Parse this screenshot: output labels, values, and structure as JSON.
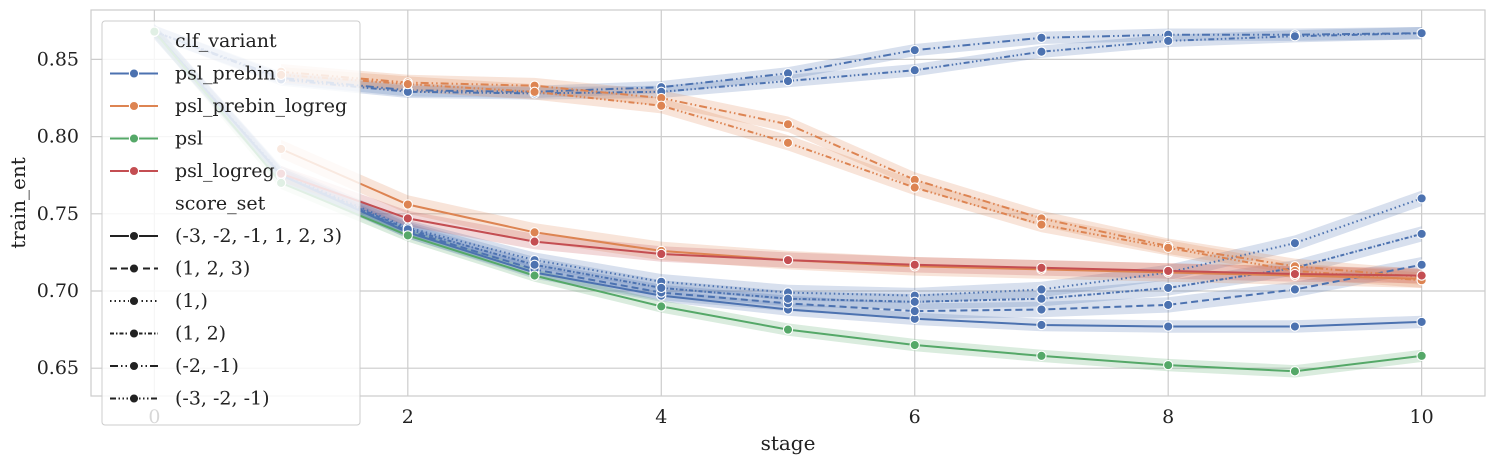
{
  "chart_data": {
    "type": "line",
    "title": "",
    "xlabel": "stage",
    "ylabel": "train_ent",
    "xlim": [
      -0.5,
      10.5
    ],
    "ylim": [
      0.632,
      0.882
    ],
    "xticks": [
      0,
      2,
      4,
      6,
      8,
      10
    ],
    "yticks": [
      0.65,
      0.7,
      0.75,
      0.8,
      0.85
    ],
    "ytick_labels": [
      "0.65",
      "0.70",
      "0.75",
      "0.80",
      "0.85"
    ],
    "grid": true,
    "legend_position": "top-left",
    "legend": {
      "hue_title": "clf_variant",
      "hue_items": [
        {
          "name": "psl_prebin",
          "color": "#4c72b0"
        },
        {
          "name": "psl_prebin_logreg",
          "color": "#dd8452"
        },
        {
          "name": "psl",
          "color": "#55a868"
        },
        {
          "name": "psl_logreg",
          "color": "#c44e52"
        }
      ],
      "style_title": "score_set",
      "style_items": [
        {
          "name": "(-3, -2, -1, 1, 2, 3)",
          "dash": "solid"
        },
        {
          "name": "(1, 2, 3)",
          "dash": "dashed"
        },
        {
          "name": "(1,)",
          "dash": "dotted"
        },
        {
          "name": "(1, 2)",
          "dash": "dashdot"
        },
        {
          "name": "(-2, -1)",
          "dash": "dashdotdot"
        },
        {
          "name": "(-3, -2, -1)",
          "dash": "dashdotdotdot"
        }
      ]
    },
    "series": [
      {
        "clf_variant": "psl_prebin",
        "score_set": "(-3, -2, -1, 1, 2, 3)",
        "color": "#4c72b0",
        "dash": "solid",
        "band": 0.004,
        "x": [
          0,
          1,
          2,
          3,
          4,
          5,
          6,
          7,
          8,
          9,
          10
        ],
        "y": [
          0.868,
          0.775,
          0.738,
          0.712,
          0.697,
          0.688,
          0.682,
          0.678,
          0.677,
          0.677,
          0.68
        ]
      },
      {
        "clf_variant": "psl_prebin",
        "score_set": "(1, 2, 3)",
        "color": "#4c72b0",
        "dash": "dashed",
        "band": 0.005,
        "x": [
          0,
          1,
          2,
          3,
          4,
          5,
          6,
          7,
          8,
          9,
          10
        ],
        "y": [
          0.868,
          0.775,
          0.739,
          0.714,
          0.699,
          0.692,
          0.687,
          0.688,
          0.691,
          0.701,
          0.717
        ]
      },
      {
        "clf_variant": "psl_prebin",
        "score_set": "(1,)",
        "color": "#4c72b0",
        "dash": "dotted",
        "band": 0.005,
        "x": [
          0,
          1,
          2,
          3,
          4,
          5,
          6,
          7,
          8,
          9,
          10
        ],
        "y": [
          0.868,
          0.776,
          0.741,
          0.72,
          0.706,
          0.699,
          0.697,
          0.701,
          0.712,
          0.731,
          0.76
        ]
      },
      {
        "clf_variant": "psl_prebin",
        "score_set": "(1, 2)",
        "color": "#4c72b0",
        "dash": "dashdot",
        "band": 0.005,
        "x": [
          0,
          1,
          2,
          3,
          4,
          5,
          6,
          7,
          8,
          9,
          10
        ],
        "y": [
          0.868,
          0.775,
          0.74,
          0.717,
          0.702,
          0.695,
          0.693,
          0.695,
          0.702,
          0.715,
          0.737
        ]
      },
      {
        "clf_variant": "psl_prebin",
        "score_set": "(-2, -1)",
        "color": "#4c72b0",
        "dash": "dashdotdot",
        "band": 0.004,
        "x": [
          0,
          1,
          2,
          3,
          4,
          5,
          6,
          7,
          8,
          9,
          10
        ],
        "y": [
          0.868,
          0.838,
          0.83,
          0.829,
          0.832,
          0.841,
          0.856,
          0.864,
          0.866,
          0.866,
          0.867
        ]
      },
      {
        "clf_variant": "psl_prebin",
        "score_set": "(-3, -2, -1)",
        "color": "#4c72b0",
        "dash": "dashdotdotdot",
        "band": 0.004,
        "x": [
          0,
          1,
          2,
          3,
          4,
          5,
          6,
          7,
          8,
          9,
          10
        ],
        "y": [
          0.868,
          0.837,
          0.829,
          0.828,
          0.829,
          0.836,
          0.843,
          0.855,
          0.862,
          0.865,
          0.867
        ]
      },
      {
        "clf_variant": "psl_prebin_logreg",
        "score_set": "(-3, -2, -1, 1, 2, 3)",
        "color": "#dd8452",
        "dash": "solid",
        "band": 0.006,
        "x": [
          1,
          2,
          3,
          4,
          5,
          6,
          7,
          8,
          9,
          10
        ],
        "y": [
          0.792,
          0.756,
          0.738,
          0.726,
          0.72,
          0.716,
          0.714,
          0.712,
          0.71,
          0.708
        ]
      },
      {
        "clf_variant": "psl_prebin_logreg",
        "score_set": "(-2, -1)",
        "color": "#dd8452",
        "dash": "dashdotdot",
        "band": 0.005,
        "x": [
          1,
          2,
          3,
          4,
          5,
          6,
          7,
          8,
          9,
          10
        ],
        "y": [
          0.842,
          0.835,
          0.833,
          0.825,
          0.808,
          0.772,
          0.747,
          0.729,
          0.716,
          0.709
        ]
      },
      {
        "clf_variant": "psl_prebin_logreg",
        "score_set": "(-3, -2, -1)",
        "color": "#dd8452",
        "dash": "dashdotdotdot",
        "band": 0.005,
        "x": [
          1,
          2,
          3,
          4,
          5,
          6,
          7,
          8,
          9,
          10
        ],
        "y": [
          0.84,
          0.834,
          0.829,
          0.82,
          0.796,
          0.767,
          0.743,
          0.728,
          0.713,
          0.707
        ]
      },
      {
        "clf_variant": "psl",
        "score_set": "(-3, -2, -1, 1, 2, 3)",
        "color": "#55a868",
        "dash": "solid",
        "band": 0.004,
        "x": [
          0,
          1,
          2,
          3,
          4,
          5,
          6,
          7,
          8,
          9,
          10
        ],
        "y": [
          0.868,
          0.77,
          0.736,
          0.71,
          0.69,
          0.675,
          0.665,
          0.658,
          0.652,
          0.648,
          0.658
        ]
      },
      {
        "clf_variant": "psl_logreg",
        "score_set": "(-3, -2, -1, 1, 2, 3)",
        "color": "#c44e52",
        "dash": "solid",
        "band": 0.005,
        "x": [
          1,
          2,
          3,
          4,
          5,
          6,
          7,
          8,
          9,
          10
        ],
        "y": [
          0.776,
          0.747,
          0.732,
          0.724,
          0.72,
          0.717,
          0.715,
          0.713,
          0.711,
          0.71
        ]
      }
    ]
  }
}
